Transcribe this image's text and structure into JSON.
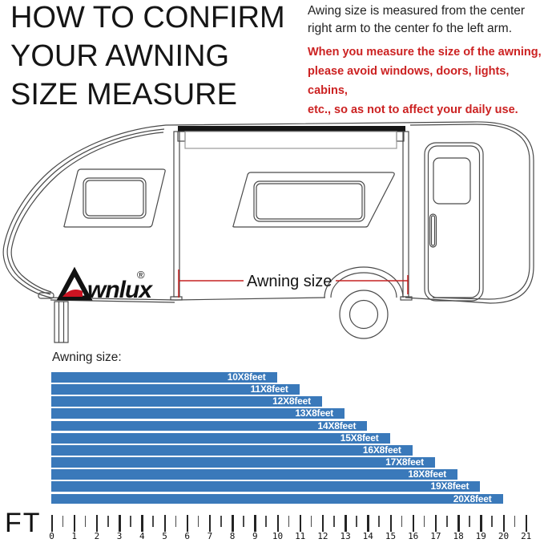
{
  "header": {
    "title_lines": [
      "HOW TO CONFIRM",
      "YOUR AWNING",
      "SIZE MEASURE"
    ],
    "note_lines": [
      "Awing size is measured from the center",
      "right arm to the center fo the left arm."
    ],
    "warning_lines": [
      "When you measure the size of the awning,",
      "please avoid windows, doors, lights, cabins,",
      "etc., so as not to affect your daily use."
    ],
    "warning_color": "#cc2222"
  },
  "diagram": {
    "measure_label": "Awning size",
    "brand": "wnlux",
    "registered": "®",
    "measure_line_color": "#c52222",
    "logo_red": "#cc1422",
    "line_color": "#4a4a4a"
  },
  "chart_data": {
    "type": "bar",
    "orientation": "horizontal",
    "title": "Awning size:",
    "axis_label": "FT",
    "unit": "feet",
    "categories": [
      "10X8feet",
      "11X8feet",
      "12X8feet",
      "13X8feet",
      "14X8feet",
      "15X8feet",
      "16X8feet",
      "17X8feet",
      "18X8feet",
      "19X8feet",
      "20X8feet"
    ],
    "values": [
      10,
      11,
      12,
      13,
      14,
      15,
      16,
      17,
      18,
      19,
      20
    ],
    "xlim": [
      0,
      21
    ],
    "tick_step": 1,
    "minor_tick_step": 0.5,
    "grid": false,
    "legend": false,
    "bar_color": "#3a79ba",
    "label_color": "#ffffff"
  }
}
